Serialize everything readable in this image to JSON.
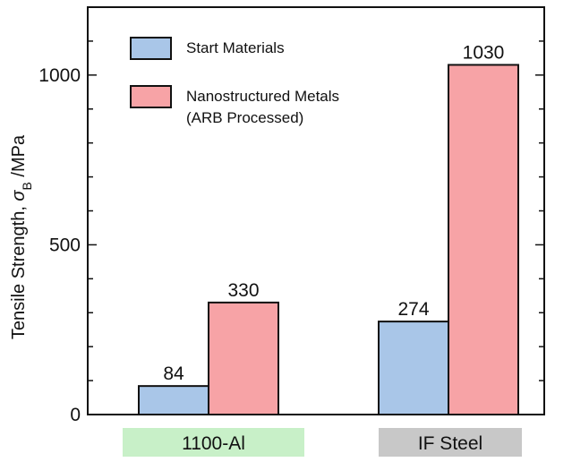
{
  "chart_data": {
    "type": "bar",
    "categories": [
      "1100-Al",
      "IF Steel"
    ],
    "series": [
      {
        "name": "Start Materials",
        "values": [
          84,
          274
        ],
        "color": "#a9c6e8"
      },
      {
        "name": "Nanostructured Metals",
        "name_line2": "(ARB Processed)",
        "values": [
          330,
          1030
        ],
        "color": "#f7a3a6"
      }
    ],
    "data_labels": [
      [
        "84",
        "274"
      ],
      [
        "330",
        "1030"
      ]
    ],
    "ylabel_main": "Tensile Strength, ",
    "ylabel_symbol": "σ",
    "ylabel_sub": "B",
    "ylabel_unit": " /MPa",
    "ylim": [
      0,
      1200
    ],
    "yticks": [
      0,
      500,
      1000
    ],
    "ytick_labels": [
      "0",
      "500",
      "1000"
    ],
    "minor_tick_step": 100,
    "category_badge_colors": [
      "#c8f0c8",
      "#c8c8c8"
    ],
    "legend_position": "top-left",
    "grid": false
  }
}
